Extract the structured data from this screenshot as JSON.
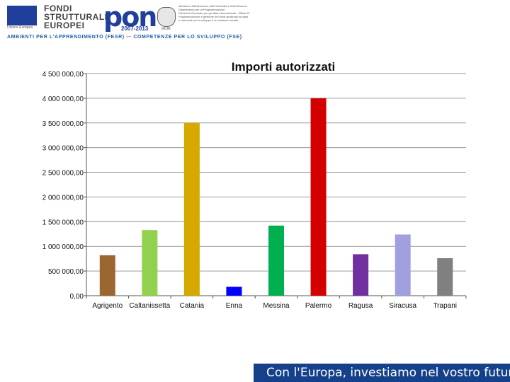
{
  "header": {
    "eu_caption": "Unione Europea",
    "fondi_lines": [
      "FONDI",
      "STRUTTURALI",
      "EUROPEI"
    ],
    "pon_label": "pon",
    "pon_years": "2007-2013",
    "emblem_caption": "MIUR",
    "ministry_lines": [
      "Ministero dell'Istruzione, dell'Università e della Ricerca",
      "Dipartimento per la Programmazione",
      "Direzione Generale per gli affari internazionali - Ufficio IV",
      "Programmazione e gestione dei fondi strutturali europei",
      "e nazionali per lo sviluppo e la coesione sociale"
    ],
    "left_tagline": "AMBIENTI PER L'APPRENDIMENTO (FESR)",
    "separator": "—",
    "right_tagline": "COMPETENZE PER LO SVILUPPO (FSE)"
  },
  "chart_data": {
    "type": "bar",
    "title": "Importi autorizzati",
    "xlabel": "",
    "ylabel": "",
    "categories": [
      "Agrigento",
      "Caltanissetta",
      "Catania",
      "Enna",
      "Messina",
      "Palermo",
      "Ragusa",
      "Siracusa",
      "Trapani"
    ],
    "values": [
      820000,
      1330000,
      3500000,
      180000,
      1420000,
      4000000,
      840000,
      1240000,
      760000
    ],
    "colors": [
      "#9c6630",
      "#92d050",
      "#d6a800",
      "#0000ff",
      "#00b050",
      "#d40000",
      "#7030a0",
      "#a0a0e0",
      "#808080"
    ],
    "ylim": [
      0,
      4500000
    ],
    "yticks": [
      "0,00",
      "500 000,00",
      "1 000 000,00",
      "1 500 000,00",
      "2 000 000,00",
      "2 500 000,00",
      "3 000 000,00",
      "3 500 000,00",
      "4 000 000,00",
      "4 500 000,00"
    ],
    "grid": true,
    "legend": "none"
  },
  "footer": {
    "slogan": "Con l'Europa, investiamo nel vostro futuro"
  }
}
